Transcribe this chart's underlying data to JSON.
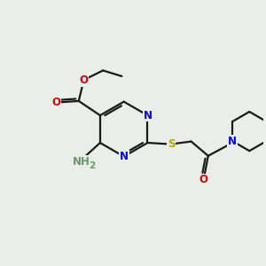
{
  "bg_color": "#eaeeea",
  "bond_color": "#1a1a1a",
  "bond_width": 1.6,
  "atom_colors": {
    "N": "#0000dd",
    "O": "#cc0000",
    "S": "#aaaa00",
    "H": "#669966"
  },
  "font_size": 8.5
}
